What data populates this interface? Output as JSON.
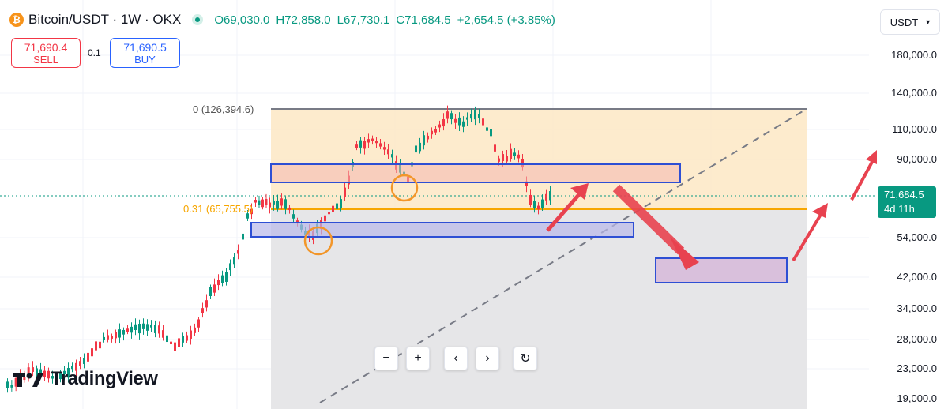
{
  "header": {
    "symbol": "Bitcoin/USDT · 1W · OKX",
    "open": "O69,030.0",
    "high": "H72,858.0",
    "low": "L67,730.1",
    "close": "C71,684.5",
    "change": "+2,654.5 (+3.85%)"
  },
  "trade": {
    "sell_price": "71,690.4",
    "sell_label": "SELL",
    "quantity": "0.1",
    "buy_price": "71,690.5",
    "buy_label": "BUY"
  },
  "currency_selector": {
    "label": "USDT"
  },
  "price_axis": {
    "ticks": [
      "180,000.0",
      "140,000.0",
      "110,000.0",
      "90,000.0",
      "54,000.0",
      "42,000.0",
      "34,000.0",
      "28,000.0",
      "23,000.0",
      "19,000.0"
    ]
  },
  "last_price": {
    "value": "71,684.5",
    "countdown": "4d 11h"
  },
  "fib": {
    "level_top": "0 (126,394.6)",
    "level_mid": "0.31 (65,755.5)"
  },
  "brand": {
    "name": "TradingView"
  },
  "colors": {
    "up": "#089981",
    "down": "#f23645",
    "fib_zone": "#fde7c4",
    "fib_line": "#f7a600",
    "box_border": "#2e4fd4",
    "arrow": "#e8424f"
  }
}
